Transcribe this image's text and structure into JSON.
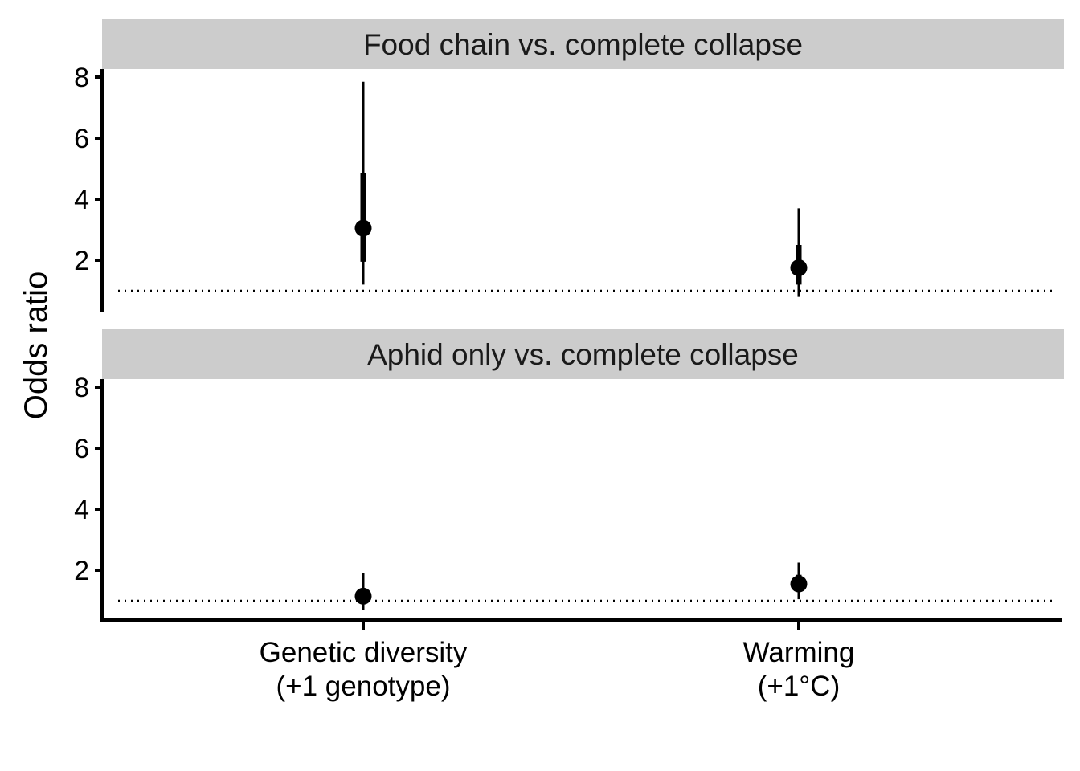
{
  "chart_data": {
    "type": "pointrange",
    "ylabel": "Odds ratio",
    "xlabel": "",
    "categories": [
      "Genetic diversity\n(+1 genotype)",
      "Warming\n(+1°C)"
    ],
    "ylim": [
      0.4,
      8.2
    ],
    "yticks": [
      2,
      4,
      6,
      8
    ],
    "reference_line": 1,
    "facets": [
      {
        "title": "Food chain vs. complete collapse",
        "points": [
          {
            "category": "Genetic diversity\n(+1 genotype)",
            "estimate": 3.05,
            "inner": [
              1.95,
              4.85
            ],
            "outer": [
              1.2,
              7.85
            ]
          },
          {
            "category": "Warming\n(+1°C)",
            "estimate": 1.75,
            "inner": [
              1.2,
              2.5
            ],
            "outer": [
              0.8,
              3.7
            ]
          }
        ]
      },
      {
        "title": "Aphid only vs. complete collapse",
        "points": [
          {
            "category": "Genetic diversity\n(+1 genotype)",
            "estimate": 1.15,
            "inner": [
              0.95,
              1.4
            ],
            "outer": [
              0.7,
              1.9
            ]
          },
          {
            "category": "Warming\n(+1°C)",
            "estimate": 1.55,
            "inner": [
              1.3,
              1.85
            ],
            "outer": [
              1.05,
              2.25
            ]
          }
        ]
      }
    ]
  }
}
